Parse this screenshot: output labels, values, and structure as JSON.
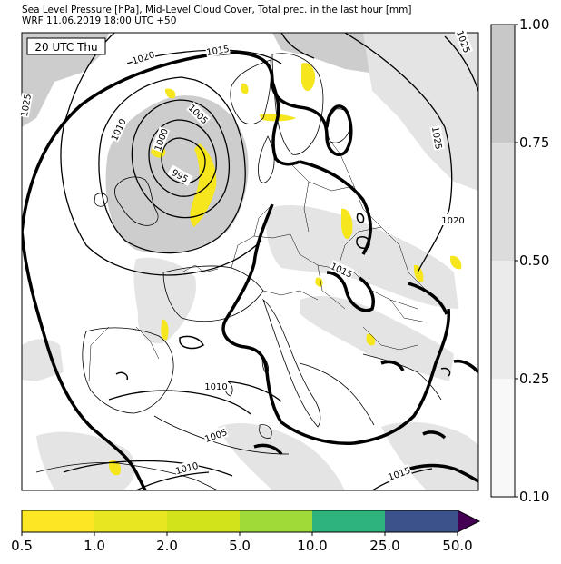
{
  "header": {
    "line1": "Sea Level Pressure [hPa], Mid-Level Cloud Cover, Total prec. in the last hour [mm]",
    "line2": "WRF 11.06.2019 18:00 UTC +50"
  },
  "map": {
    "valid_time_label": "20 UTC Thu",
    "isobar_labels": [
      "1025",
      "1020",
      "1015",
      "1010",
      "1005",
      "1000",
      "995",
      "1025",
      "1025",
      "1020",
      "1015",
      "1010",
      "1005",
      "1010",
      "1015"
    ],
    "colors": {
      "cloud_light": "#e4e4e4",
      "cloud_medium": "#cdcdcd",
      "precip_yellow": "#f5e61e",
      "coast": "#000000"
    }
  },
  "cloud_colorbar": {
    "ticks": [
      "1.00",
      "0.75",
      "0.50",
      "0.25",
      "0.10"
    ],
    "colors": [
      "#c8c8c8",
      "#dcdcdc",
      "#ebebeb",
      "#f8f8f8"
    ]
  },
  "precip_colorbar": {
    "ticks": [
      "0.5",
      "1.0",
      "2.0",
      "5.0",
      "10.0",
      "25.0",
      "50.0"
    ],
    "colors": [
      "#fde725",
      "#e8e521",
      "#d2e21b",
      "#a0da39",
      "#2eb37c",
      "#3b528b",
      "#440154"
    ]
  }
}
